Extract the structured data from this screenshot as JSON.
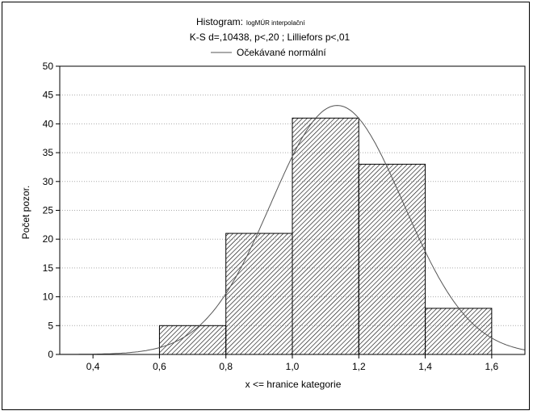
{
  "chart_data": {
    "type": "bar",
    "title": {
      "prefix": "Histogram:",
      "variable": "logMÚR interpolační",
      "stats": "K-S d=,10438, p<,20 ; Lilliefors p<,01"
    },
    "xlabel": "x <= hranice kategorie",
    "ylabel": "Počet pozor.",
    "xlim": [
      0.3,
      1.7
    ],
    "ylim": [
      0,
      50
    ],
    "xticks": [
      0.4,
      0.6,
      0.8,
      1.0,
      1.2,
      1.4,
      1.6
    ],
    "xtick_labels": [
      "0,4",
      "0,6",
      "0,8",
      "1,0",
      "1,2",
      "1,4",
      "1,6"
    ],
    "yticks": [
      0,
      5,
      10,
      15,
      20,
      25,
      30,
      35,
      40,
      45,
      50
    ],
    "ytick_labels": [
      "0",
      "5",
      "10",
      "15",
      "20",
      "25",
      "30",
      "35",
      "40",
      "45",
      "50"
    ],
    "bins": [
      {
        "from": 0.6,
        "to": 0.8,
        "count": 5
      },
      {
        "from": 0.8,
        "to": 1.0,
        "count": 21
      },
      {
        "from": 1.0,
        "to": 1.2,
        "count": 41
      },
      {
        "from": 1.2,
        "to": 1.4,
        "count": 33
      },
      {
        "from": 1.4,
        "to": 1.6,
        "count": 8
      }
    ],
    "normal_curve": {
      "name": "Očekávané normální",
      "mean": 1.135,
      "sd": 0.1995,
      "n": 108,
      "bin_width": 0.2
    },
    "grid": "horizontal dotted",
    "legend": "top-center",
    "colors": {
      "bar_fill": "#ffffff",
      "bar_hatch": "#000000",
      "curve": "#555555",
      "grid": "#aaaaaa"
    }
  }
}
